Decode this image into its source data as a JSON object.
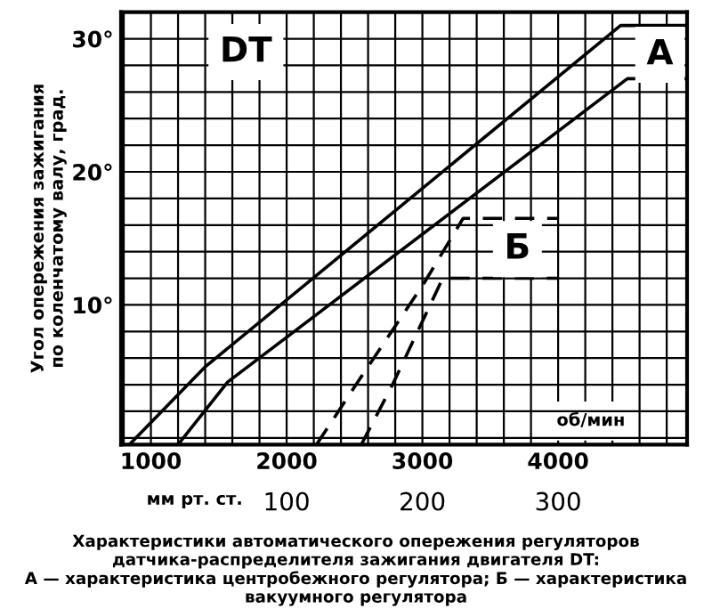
{
  "chart_data": {
    "type": "line",
    "title": "Характеристики автоматического опережения регуляторов датчика-распределителя зажигания двигателя DT:\nА — характеристика центробежного регулятора; Б — характеристика вакуумного регулятора",
    "ylabel": "Угол опережения зажигания\nпо коленчатому валу, град.",
    "xlabel": "об/мин",
    "x2label": "мм рт. ст.",
    "series": [
      {
        "color": "#000000",
        "line_style": "solid",
        "x": [
          842,
          1395,
          4460,
          4950
        ],
        "values": [
          -0.5,
          5.3,
          31,
          31
        ]
      },
      {
        "color": "#000000",
        "line_style": "solid",
        "x": [
          1200,
          1565,
          4510,
          4950
        ],
        "values": [
          -0.5,
          4.2,
          27,
          27
        ]
      },
      {
        "color": "#000000",
        "line_style": "dashed",
        "x": [
          2220,
          2550,
          3010,
          3300,
          4000
        ],
        "values": [
          -0.5,
          4.6,
          11.6,
          16.5,
          16.5
        ]
      },
      {
        "color": "#000000",
        "line_style": "dashed",
        "x": [
          2550,
          2780,
          3150,
          4000
        ],
        "values": [
          -0.5,
          4,
          12,
          12
        ]
      }
    ],
    "annotations": [
      {
        "text": "DT",
        "x": 1700,
        "y": 29
      },
      {
        "text": "А",
        "x": 4750,
        "y": 28.8
      },
      {
        "text": "Б",
        "x": 3700,
        "y": 14.2
      }
    ],
    "xlim": [
      780,
      4950
    ],
    "ylim": [
      -0.5,
      32
    ],
    "xticks": [
      {
        "value": 800,
        "label": null
      },
      1000,
      {
        "value": 1200,
        "label": null
      },
      {
        "value": 1400,
        "label": null
      },
      {
        "value": 1600,
        "label": null
      },
      {
        "value": 1800,
        "label": null
      },
      2000,
      {
        "value": 2200,
        "label": null
      },
      {
        "value": 2400,
        "label": null
      },
      {
        "value": 2600,
        "label": null
      },
      {
        "value": 2800,
        "label": null
      },
      3000,
      {
        "value": 3200,
        "label": null
      },
      {
        "value": 3400,
        "label": null
      },
      {
        "value": 3600,
        "label": null
      },
      {
        "value": 3800,
        "label": null
      },
      4000,
      {
        "value": 4200,
        "label": null
      },
      {
        "value": 4400,
        "label": null
      },
      {
        "value": 4600,
        "label": null
      },
      {
        "value": 4800,
        "label": null
      }
    ],
    "yticks": [
      {
        "value": 0,
        "label": null
      },
      {
        "value": 2,
        "label": null
      },
      {
        "value": 4,
        "label": null
      },
      {
        "value": 6,
        "label": null
      },
      {
        "value": 8,
        "label": null
      },
      {
        "value": 10,
        "label": "10°"
      },
      {
        "value": 12,
        "label": null
      },
      {
        "value": 14,
        "label": null
      },
      {
        "value": 16,
        "label": null
      },
      {
        "value": 18,
        "label": null
      },
      {
        "value": 20,
        "label": "20°"
      },
      {
        "value": 22,
        "label": null
      },
      {
        "value": 24,
        "label": null
      },
      {
        "value": 26,
        "label": null
      },
      {
        "value": 28,
        "label": null
      },
      {
        "value": 30,
        "label": "30°"
      },
      {
        "value": 32,
        "label": null
      }
    ],
    "x2lim": [
      -22,
      395
    ],
    "x2ticks": [
      100,
      200,
      300
    ],
    "grid": true,
    "marker": "none"
  }
}
